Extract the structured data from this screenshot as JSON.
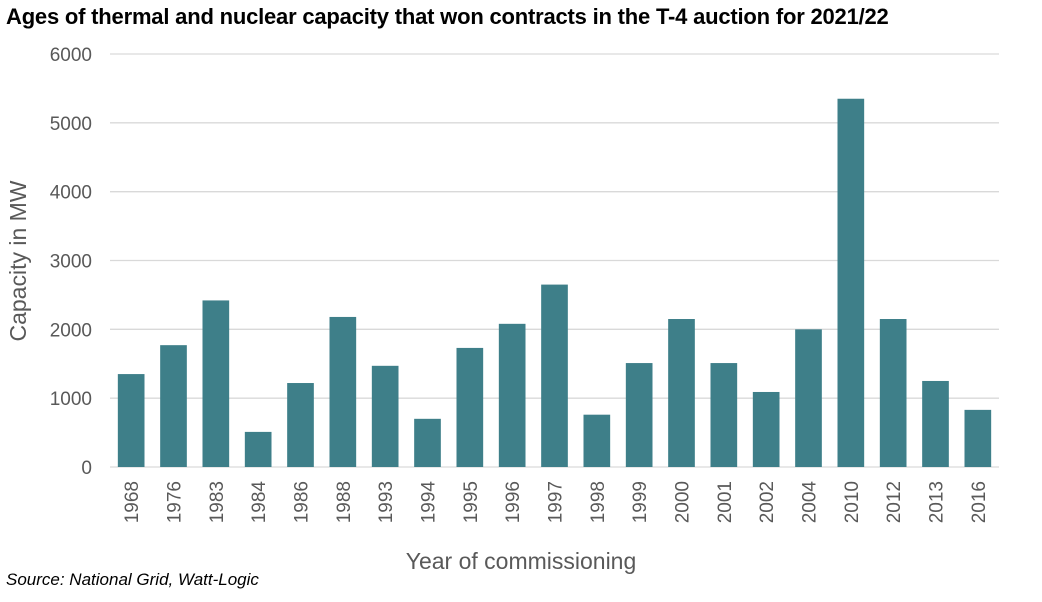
{
  "title": "Ages of thermal and nuclear capacity that won contracts in the T-4 auction for 2021/22",
  "source": "Source: National Grid, Watt-Logic",
  "colors": {
    "bar": "#3e7f89",
    "grid": "#d9d9d9",
    "text": "#595959"
  },
  "chart_data": {
    "type": "bar",
    "title": "Ages of thermal and nuclear capacity that won contracts in the T-4 auction for 2021/22",
    "xlabel": "Year of commissioning",
    "ylabel": "Capacity in MW",
    "ylim": [
      0,
      6000
    ],
    "yticks": [
      "0",
      "1000",
      "2000",
      "3000",
      "4000",
      "5000",
      "6000"
    ],
    "grid": true,
    "categories": [
      "1968",
      "1976",
      "1983",
      "1984",
      "1986",
      "1988",
      "1993",
      "1994",
      "1995",
      "1996",
      "1997",
      "1998",
      "1999",
      "2000",
      "2001",
      "2002",
      "2004",
      "2010",
      "2012",
      "2013",
      "2016"
    ],
    "values": [
      1350,
      1770,
      2420,
      510,
      1220,
      2180,
      1470,
      700,
      1730,
      2080,
      2650,
      760,
      1510,
      2150,
      1510,
      1090,
      2000,
      5350,
      2150,
      1250,
      830
    ]
  }
}
